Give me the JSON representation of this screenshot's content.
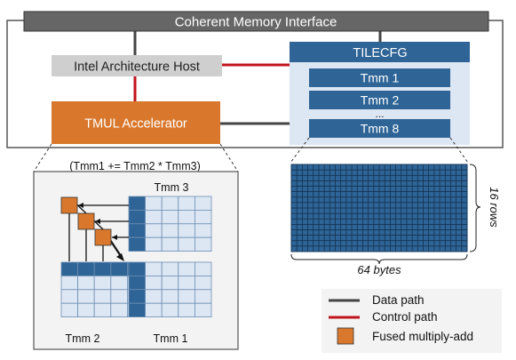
{
  "top_bar": {
    "label": "Coherent Memory Interface"
  },
  "host": {
    "label": "Intel Architecture Host"
  },
  "accelerator": {
    "label": "TMUL Accelerator"
  },
  "tilecfg": {
    "title": "TILECFG",
    "tiles": [
      "Tmm 1",
      "Tmm 2",
      "Tmm 8"
    ],
    "ellipsis": "..."
  },
  "formula": "(Tmm1 += Tmm2 * Tmm3)",
  "zoom": {
    "tmm3_label": "Tmm 3",
    "tmm2_label": "Tmm 2",
    "tmm1_label": "Tmm 1"
  },
  "tile_grid": {
    "rows_label": "16 rows",
    "cols_label": "64 bytes"
  },
  "legend": {
    "items": [
      {
        "label": "Data path",
        "kind": "line",
        "color": "#444444"
      },
      {
        "label": "Control path",
        "kind": "line",
        "color": "#c0141b"
      },
      {
        "label": "Fused multiply-add",
        "kind": "square",
        "color": "#d9782d"
      }
    ]
  },
  "colors": {
    "orange": "#d9782d",
    "blue_dark": "#2e6496",
    "blue_light": "#dde6f3",
    "red": "#c0141b",
    "gray_box": "#cfcfcf",
    "panel": "#f3f3f3"
  }
}
